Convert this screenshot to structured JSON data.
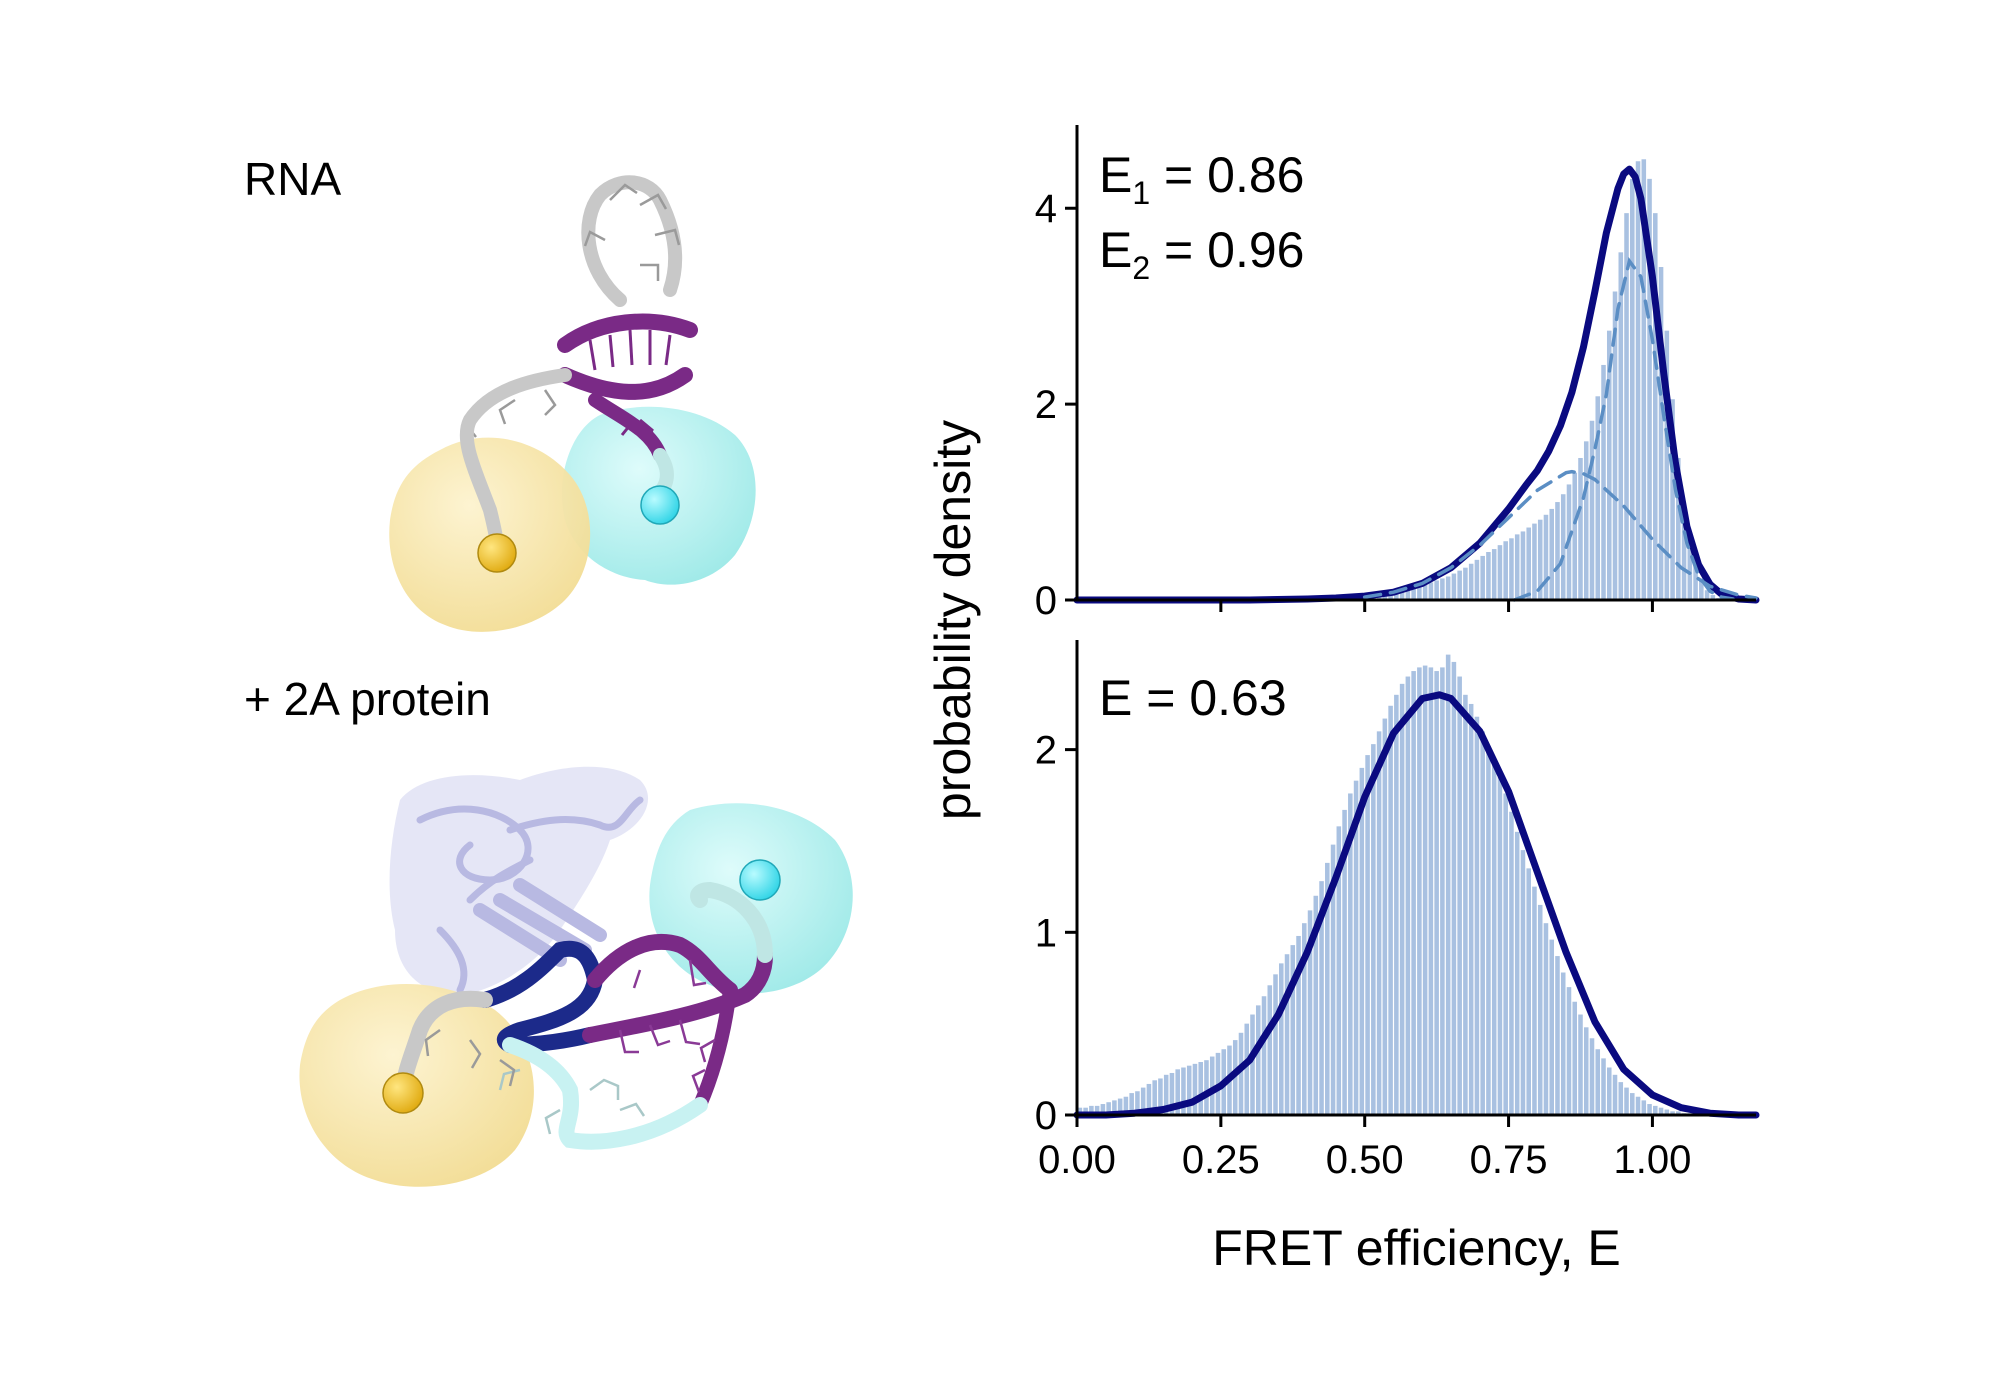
{
  "panel_labels": {
    "rna": "RNA",
    "protein": "+ 2A protein"
  },
  "colors": {
    "fit_line": "#0a0a80",
    "component_line": "#5b8ec4",
    "hist_bar": "#a9c1e1",
    "donor_sphere": "#f8e6a6",
    "donor_dye": "#f0c72a",
    "acceptor_sphere": "#a8f0ee",
    "acceptor_dye": "#5ce8f0",
    "rna_grey": "#c8c8c8",
    "rna_purple": "#7a2a86",
    "rna_navy": "#1c2a8a",
    "rna_lightblue": "#c8f2f2",
    "protein_lavender": "#b8b9e2"
  },
  "chart_data": [
    {
      "type": "bar",
      "panel": "top",
      "annotation": {
        "line1_prefix": "E",
        "line1_sub": "1",
        "line1_value": " = 0.86",
        "line2_prefix": "E",
        "line2_sub": "2",
        "line2_value": " = 0.96"
      },
      "xlabel": "",
      "ylabel": "probability density",
      "xlim": [
        0,
        1.18
      ],
      "ylim": [
        0,
        4.85
      ],
      "yticks": [
        0,
        2,
        4
      ],
      "xticks": [
        0.25,
        0.5,
        0.75,
        1.0
      ],
      "show_xticklabels": false,
      "histogram": {
        "bin_width": 0.01,
        "x_start": 0.0,
        "values": [
          0.01,
          0.01,
          0.01,
          0.01,
          0.01,
          0.01,
          0.01,
          0.01,
          0.01,
          0.01,
          0.01,
          0.01,
          0.01,
          0.01,
          0.01,
          0.01,
          0.01,
          0.01,
          0.01,
          0.01,
          0.01,
          0.01,
          0.02,
          0.02,
          0.02,
          0.02,
          0.02,
          0.02,
          0.02,
          0.02,
          0.03,
          0.02,
          0.03,
          0.03,
          0.03,
          0.03,
          0.03,
          0.03,
          0.03,
          0.03,
          0.04,
          0.04,
          0.04,
          0.04,
          0.04,
          0.05,
          0.05,
          0.05,
          0.06,
          0.06,
          0.06,
          0.07,
          0.08,
          0.08,
          0.09,
          0.1,
          0.11,
          0.12,
          0.13,
          0.14,
          0.16,
          0.18,
          0.2,
          0.22,
          0.24,
          0.27,
          0.3,
          0.33,
          0.37,
          0.41,
          0.45,
          0.49,
          0.52,
          0.56,
          0.6,
          0.63,
          0.67,
          0.7,
          0.74,
          0.78,
          0.82,
          0.87,
          0.93,
          1.0,
          1.08,
          1.18,
          1.3,
          1.45,
          1.62,
          1.83,
          2.08,
          2.4,
          2.75,
          3.15,
          3.55,
          3.95,
          4.3,
          4.48,
          4.5,
          4.3,
          3.95,
          3.4,
          2.75,
          2.05,
          1.45,
          0.95,
          0.6,
          0.36,
          0.2,
          0.1,
          0.05,
          0.02,
          0.01,
          0.0,
          0.0,
          0.0,
          0.0,
          0.0
        ]
      },
      "series": [
        {
          "style": "solid",
          "x": [
            0.0,
            0.1,
            0.2,
            0.3,
            0.4,
            0.45,
            0.5,
            0.55,
            0.6,
            0.65,
            0.7,
            0.75,
            0.78,
            0.8,
            0.82,
            0.84,
            0.86,
            0.88,
            0.9,
            0.92,
            0.94,
            0.95,
            0.96,
            0.97,
            0.98,
            1.0,
            1.02,
            1.04,
            1.06,
            1.08,
            1.1,
            1.12,
            1.15,
            1.18
          ],
          "y": [
            0.0,
            0.0,
            0.0,
            0.0,
            0.01,
            0.02,
            0.04,
            0.08,
            0.17,
            0.33,
            0.58,
            0.93,
            1.17,
            1.32,
            1.52,
            1.78,
            2.12,
            2.58,
            3.15,
            3.75,
            4.2,
            4.35,
            4.4,
            4.32,
            4.1,
            3.3,
            2.3,
            1.4,
            0.75,
            0.36,
            0.16,
            0.06,
            0.01,
            0.0
          ]
        },
        {
          "style": "dashed",
          "x": [
            0.5,
            0.55,
            0.6,
            0.65,
            0.7,
            0.75,
            0.8,
            0.85,
            0.86,
            0.88,
            0.9,
            0.95,
            1.0,
            1.05,
            1.1,
            1.15,
            1.18
          ],
          "y": [
            0.03,
            0.08,
            0.17,
            0.33,
            0.56,
            0.84,
            1.12,
            1.3,
            1.31,
            1.29,
            1.23,
            0.96,
            0.62,
            0.33,
            0.14,
            0.05,
            0.02
          ]
        },
        {
          "style": "dashed",
          "x": [
            0.76,
            0.8,
            0.84,
            0.88,
            0.9,
            0.92,
            0.94,
            0.96,
            0.98,
            1.0,
            1.02,
            1.04,
            1.06,
            1.08,
            1.1,
            1.12,
            1.14
          ],
          "y": [
            0.0,
            0.09,
            0.37,
            1.04,
            1.54,
            2.1,
            2.97,
            3.46,
            3.3,
            2.66,
            1.87,
            1.13,
            0.58,
            0.25,
            0.09,
            0.03,
            0.01
          ]
        }
      ]
    },
    {
      "type": "bar",
      "panel": "bottom",
      "annotation": {
        "text": "E = 0.63"
      },
      "xlabel": "FRET efficiency, E",
      "ylabel": "probability density",
      "xlim": [
        0,
        1.18
      ],
      "ylim": [
        0,
        2.6
      ],
      "yticks": [
        0,
        1,
        2
      ],
      "xticks": [
        0.0,
        0.25,
        0.5,
        0.75,
        1.0
      ],
      "xticklabels": [
        "0.00",
        "0.25",
        "0.50",
        "0.75",
        "1.00"
      ],
      "histogram": {
        "bin_width": 0.01,
        "x_start": 0.0,
        "values": [
          0.04,
          0.04,
          0.05,
          0.05,
          0.06,
          0.07,
          0.08,
          0.09,
          0.1,
          0.12,
          0.13,
          0.15,
          0.17,
          0.19,
          0.2,
          0.22,
          0.23,
          0.25,
          0.26,
          0.27,
          0.28,
          0.29,
          0.3,
          0.32,
          0.34,
          0.36,
          0.38,
          0.41,
          0.45,
          0.5,
          0.55,
          0.6,
          0.65,
          0.71,
          0.77,
          0.83,
          0.88,
          0.93,
          0.98,
          1.05,
          1.12,
          1.2,
          1.28,
          1.38,
          1.48,
          1.58,
          1.67,
          1.76,
          1.83,
          1.9,
          1.97,
          2.03,
          2.1,
          2.17,
          2.24,
          2.3,
          2.36,
          2.4,
          2.43,
          2.45,
          2.46,
          2.45,
          2.43,
          2.45,
          2.52,
          2.48,
          2.4,
          2.3,
          2.25,
          2.18,
          2.1,
          2.02,
          1.93,
          1.85,
          1.76,
          1.66,
          1.55,
          1.45,
          1.35,
          1.25,
          1.15,
          1.05,
          0.96,
          0.87,
          0.78,
          0.7,
          0.62,
          0.55,
          0.48,
          0.42,
          0.36,
          0.31,
          0.26,
          0.22,
          0.18,
          0.15,
          0.12,
          0.1,
          0.08,
          0.06,
          0.05,
          0.04,
          0.03,
          0.02,
          0.02,
          0.01,
          0.01,
          0.01,
          0.0,
          0.0,
          0.0,
          0.0,
          0.0,
          0.0,
          0.0,
          0.0,
          0.0,
          0.0
        ]
      },
      "series": [
        {
          "style": "solid",
          "x": [
            0.0,
            0.05,
            0.1,
            0.15,
            0.2,
            0.25,
            0.3,
            0.35,
            0.4,
            0.45,
            0.5,
            0.55,
            0.6,
            0.63,
            0.65,
            0.7,
            0.75,
            0.8,
            0.85,
            0.9,
            0.95,
            1.0,
            1.05,
            1.1,
            1.15,
            1.18
          ],
          "y": [
            0.0,
            0.0,
            0.01,
            0.03,
            0.07,
            0.16,
            0.3,
            0.55,
            0.89,
            1.3,
            1.74,
            2.09,
            2.28,
            2.3,
            2.28,
            2.1,
            1.77,
            1.33,
            0.89,
            0.51,
            0.25,
            0.11,
            0.04,
            0.01,
            0.0,
            0.0
          ]
        }
      ]
    }
  ]
}
